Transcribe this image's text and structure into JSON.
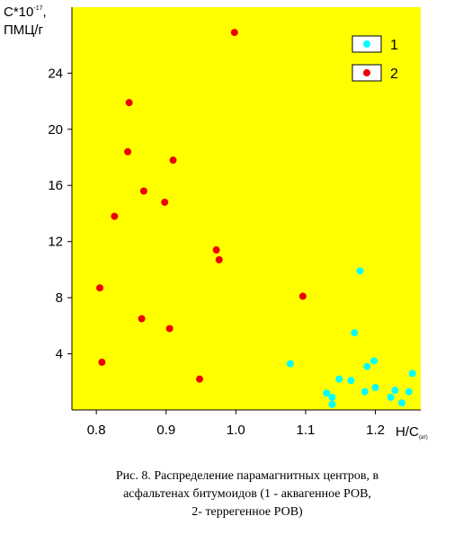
{
  "chart_data": {
    "type": "scatter",
    "ylabel": {
      "base": "C*10",
      "exponent": "-17",
      "suffix": ",",
      "unit": "ПМЦ/г"
    },
    "xlabel": {
      "base": "H/C",
      "subscript": "(ат)"
    },
    "xlim": [
      0.765,
      1.265
    ],
    "ylim": [
      0,
      28.7
    ],
    "xticks": [
      0.8,
      0.9,
      1.0,
      1.1,
      1.2
    ],
    "xtick_labels": [
      "0.8",
      "0.9",
      "1.0",
      "1.1",
      "1.2"
    ],
    "yticks": [
      4,
      8,
      12,
      16,
      20,
      24
    ],
    "ytick_labels": [
      "4",
      "8",
      "12",
      "16",
      "20",
      "24"
    ],
    "background": "#ffff00",
    "legend": {
      "placement": "top-right"
    },
    "series": [
      {
        "name": "1",
        "color": "#00ffff",
        "points": [
          [
            1.078,
            3.3
          ],
          [
            1.13,
            1.2
          ],
          [
            1.138,
            0.9
          ],
          [
            1.138,
            0.4
          ],
          [
            1.148,
            2.2
          ],
          [
            1.165,
            2.1
          ],
          [
            1.17,
            5.5
          ],
          [
            1.178,
            9.9
          ],
          [
            1.185,
            1.3
          ],
          [
            1.188,
            3.1
          ],
          [
            1.198,
            3.5
          ],
          [
            1.2,
            1.6
          ],
          [
            1.222,
            0.9
          ],
          [
            1.228,
            1.4
          ],
          [
            1.238,
            0.5
          ],
          [
            1.248,
            1.3
          ],
          [
            1.253,
            2.6
          ]
        ]
      },
      {
        "name": "2",
        "color": "#ee0000",
        "points": [
          [
            0.805,
            8.7
          ],
          [
            0.808,
            3.4
          ],
          [
            0.826,
            13.8
          ],
          [
            0.845,
            18.4
          ],
          [
            0.847,
            21.9
          ],
          [
            0.865,
            6.5
          ],
          [
            0.868,
            15.6
          ],
          [
            0.898,
            14.8
          ],
          [
            0.905,
            5.8
          ],
          [
            0.91,
            17.8
          ],
          [
            0.948,
            2.2
          ],
          [
            0.972,
            11.4
          ],
          [
            0.976,
            10.7
          ],
          [
            0.998,
            26.9
          ],
          [
            1.096,
            8.1
          ]
        ]
      }
    ]
  },
  "caption": [
    "Рис. 8. Распределение парамагнитных центров, в",
    "асфальтенах битумоидов (1 - аквагенное РОВ,",
    "2- террегенное РОВ)"
  ]
}
